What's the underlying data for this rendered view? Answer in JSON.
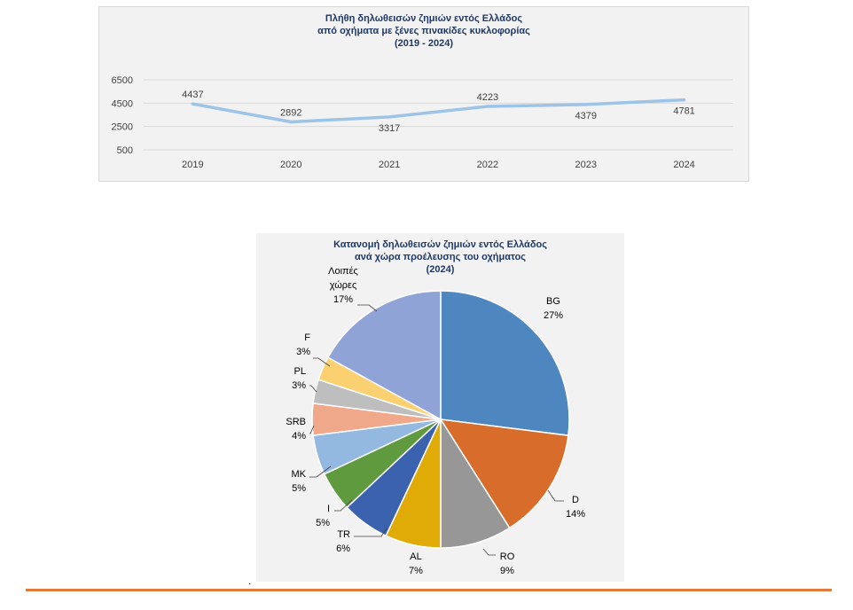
{
  "chart_data": [
    {
      "type": "line",
      "title_lines": [
        "Πλήθη δηλωθεισών ζημιών εντός Ελλάδος",
        "από οχήματα με ξένες πινακίδες κυκλοφορίας",
        "(2019 - 2024)"
      ],
      "categories": [
        "2019",
        "2020",
        "2021",
        "2022",
        "2023",
        "2024"
      ],
      "values": [
        4437,
        2892,
        3317,
        4223,
        4379,
        4781
      ],
      "data_labels": [
        "4437",
        "2892",
        "3317",
        "4223",
        "4379",
        "4781"
      ],
      "yticks": [
        500,
        2500,
        4500,
        6500
      ],
      "ytick_labels": [
        "500",
        "2500",
        "4500",
        "6500"
      ],
      "ylim": [
        500,
        6500
      ],
      "grid": true,
      "legend": "none",
      "color": "#9dc3e6"
    },
    {
      "type": "pie",
      "title_lines": [
        "Κατανομή δηλωθεισών ζημιών εντός Ελλάδος",
        "ανά χώρα προέλευσης του οχήματος",
        "(2024)"
      ],
      "slices": [
        {
          "name": "BG",
          "value": 27,
          "pct_label": "27%",
          "color": "#4e87c0"
        },
        {
          "name": "D",
          "value": 14,
          "pct_label": "14%",
          "color": "#d86c2a"
        },
        {
          "name": "RO",
          "value": 9,
          "pct_label": "9%",
          "color": "#979797"
        },
        {
          "name": "AL",
          "value": 7,
          "pct_label": "7%",
          "color": "#e0aa07"
        },
        {
          "name": "TR",
          "value": 6,
          "pct_label": "6%",
          "color": "#3a62ae"
        },
        {
          "name": "I",
          "value": 5,
          "pct_label": "5%",
          "color": "#5f9a3f"
        },
        {
          "name": "MK",
          "value": 5,
          "pct_label": "5%",
          "color": "#93b9e1"
        },
        {
          "name": "SRB",
          "value": 4,
          "pct_label": "4%",
          "color": "#efa98a"
        },
        {
          "name": "PL",
          "value": 3,
          "pct_label": "3%",
          "color": "#bebebe"
        },
        {
          "name": "F",
          "value": 3,
          "pct_label": "3%",
          "color": "#fbd070"
        },
        {
          "name": "Λοιπές χώρες",
          "label_lines": [
            "Λοιπές",
            "χώρες"
          ],
          "value": 17,
          "pct_label": "17%",
          "color": "#8fa3d7"
        }
      ],
      "legend": "none"
    }
  ],
  "footer": {
    "dot": "."
  },
  "colors": {
    "title": "#1f3864",
    "rule": "#e07b39",
    "panel": "#f2f2f2",
    "grid": "#d9d9d9",
    "text": "#404040"
  }
}
